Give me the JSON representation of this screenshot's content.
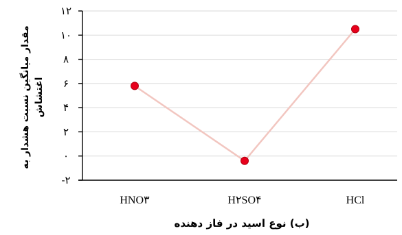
{
  "chart_data": {
    "type": "line",
    "categories": [
      "HNO₃",
      "H₂SO₄",
      "HCl"
    ],
    "category_display": [
      "HNO۳",
      "H۲SO۴",
      "HCl"
    ],
    "series": [
      {
        "values": [
          5.8,
          -0.4,
          10.5
        ]
      }
    ],
    "ylim": [
      -2,
      12
    ],
    "yticks": [
      -2,
      0,
      2,
      4,
      6,
      8,
      10,
      12
    ],
    "ytick_labels": [
      "-۲",
      "۰",
      "۲",
      "۴",
      "۶",
      "۸",
      "۱۰",
      "۱۲"
    ],
    "xlabel": "(ب) نوع اسید در فاز دهنده",
    "ylabel_lines": [
      "مقدار میانگین نسبت هشدار به",
      "اغتشاش"
    ],
    "grid": true,
    "colors": {
      "line": "#f2c6c0",
      "marker_fill": "#e8001c",
      "marker_stroke": "#b00010",
      "grid": "#d9d9d9",
      "axis": "#000000"
    }
  }
}
